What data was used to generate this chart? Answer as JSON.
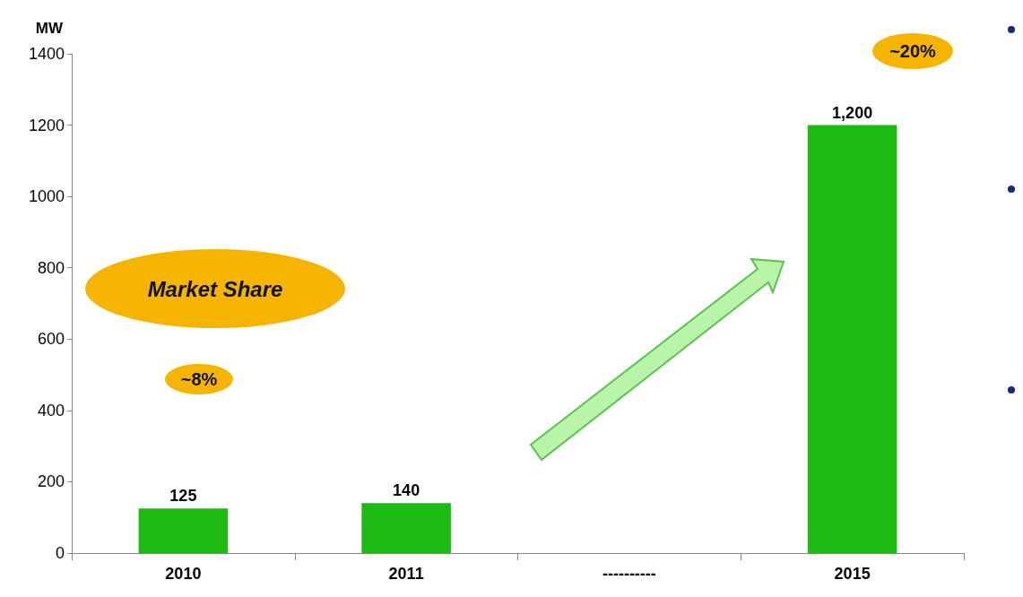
{
  "chart_data": {
    "type": "bar",
    "ylabel": "MW",
    "categories": [
      "2010",
      "2011",
      "----------",
      "2015"
    ],
    "values": [
      125,
      140,
      null,
      1200
    ],
    "value_labels": [
      "125",
      "140",
      null,
      "1,200"
    ],
    "color": "#1dbb12",
    "ylim": [
      0,
      1400
    ],
    "yticks": [
      0,
      200,
      400,
      600,
      800,
      1000,
      1200,
      1400
    ],
    "grid": false,
    "annotations": [
      "Market Share",
      "~8%",
      "~20%"
    ]
  }
}
